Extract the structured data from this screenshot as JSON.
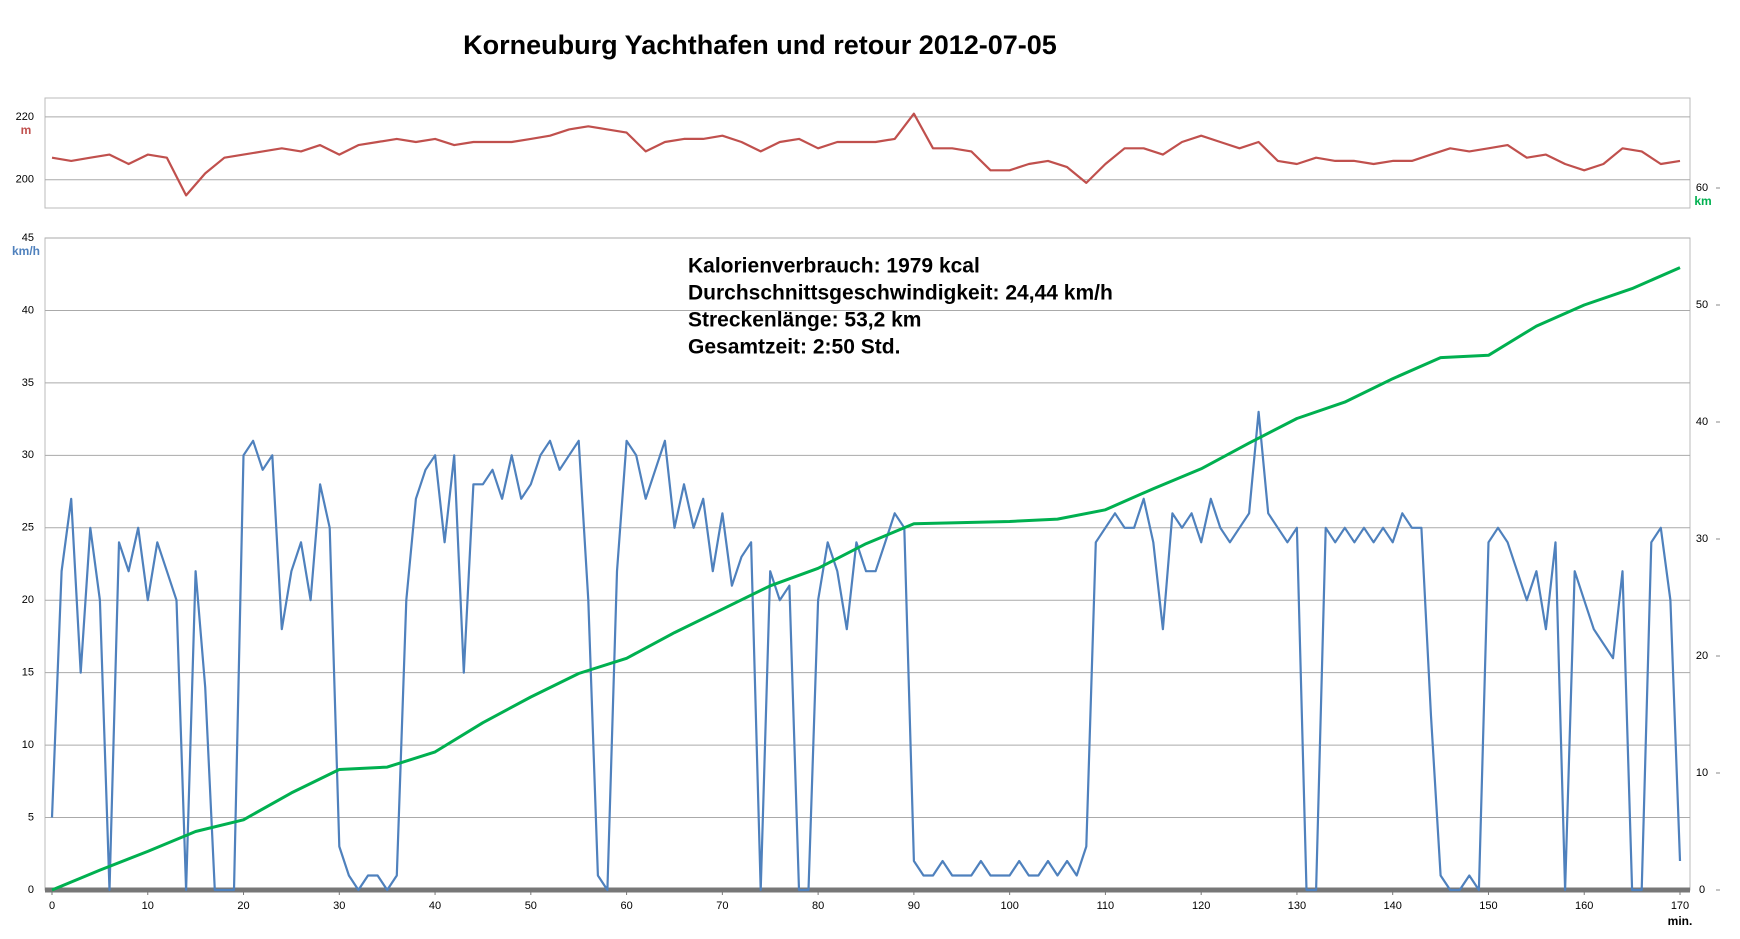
{
  "chart_data": [
    {
      "type": "line",
      "title": "Korneuburg Yachthafen und retour    2012-07-05",
      "ylabel": "m",
      "xlim": [
        0,
        170
      ],
      "ylim": [
        191,
        226
      ],
      "yticks": [
        200,
        220
      ],
      "grid": true,
      "series": [
        {
          "color": "#c0504d",
          "x": [
            0,
            2,
            4,
            6,
            8,
            10,
            12,
            14,
            16,
            18,
            20,
            22,
            24,
            26,
            28,
            30,
            32,
            34,
            36,
            38,
            40,
            42,
            44,
            46,
            48,
            50,
            52,
            54,
            56,
            58,
            60,
            62,
            64,
            66,
            68,
            70,
            72,
            74,
            76,
            78,
            80,
            82,
            84,
            86,
            88,
            90,
            92,
            94,
            96,
            98,
            100,
            102,
            104,
            106,
            108,
            110,
            112,
            114,
            116,
            118,
            120,
            122,
            124,
            126,
            128,
            130,
            132,
            134,
            136,
            138,
            140,
            142,
            144,
            146,
            148,
            150,
            152,
            154,
            156,
            158,
            160,
            162,
            164,
            166,
            168,
            170
          ],
          "values": [
            207,
            206,
            207,
            208,
            205,
            208,
            207,
            195,
            202,
            207,
            208,
            209,
            210,
            209,
            211,
            208,
            211,
            212,
            213,
            212,
            213,
            211,
            212,
            212,
            212,
            213,
            214,
            216,
            217,
            216,
            215,
            209,
            212,
            213,
            213,
            214,
            212,
            209,
            212,
            213,
            210,
            212,
            212,
            212,
            213,
            221,
            210,
            210,
            209,
            203,
            203,
            205,
            206,
            204,
            199,
            205,
            210,
            210,
            208,
            212,
            214,
            212,
            210,
            212,
            206,
            205,
            207,
            206,
            206,
            205,
            206,
            206,
            208,
            210,
            209,
            210,
            211,
            207,
            208,
            205,
            203,
            205,
            210,
            209,
            205,
            206
          ]
        }
      ]
    },
    {
      "type": "line",
      "ylabel": "km/h",
      "y2label": "km",
      "xlabel": "min.",
      "annotations": [
        "Kalorienverbrauch: 1979 kcal",
        "Durchschnittsgeschwindigkeit: 24,44 km/h",
        "Streckenlänge: 53,2 km",
        "Gesamtzeit: 2:50 Std."
      ],
      "xlim": [
        0,
        170
      ],
      "xticks": [
        0,
        10,
        20,
        30,
        40,
        50,
        60,
        70,
        80,
        90,
        100,
        110,
        120,
        130,
        140,
        150,
        160,
        170
      ],
      "ylim": [
        0,
        45
      ],
      "yticks": [
        0,
        5,
        10,
        15,
        20,
        25,
        30,
        35,
        40,
        45
      ],
      "y2lim": [
        0,
        60
      ],
      "y2ticks": [
        0,
        10,
        20,
        30,
        40,
        50,
        60
      ],
      "grid": true,
      "series": [
        {
          "color": "#4f81bd",
          "x": [
            0,
            1,
            2,
            3,
            4,
            5,
            6,
            7,
            8,
            9,
            10,
            11,
            12,
            13,
            14,
            15,
            16,
            17,
            18,
            19,
            20,
            21,
            22,
            23,
            24,
            25,
            26,
            27,
            28,
            29,
            30,
            31,
            32,
            33,
            34,
            35,
            36,
            37,
            38,
            39,
            40,
            41,
            42,
            43,
            44,
            45,
            46,
            47,
            48,
            49,
            50,
            51,
            52,
            53,
            54,
            55,
            56,
            57,
            58,
            59,
            60,
            61,
            62,
            63,
            64,
            65,
            66,
            67,
            68,
            69,
            70,
            71,
            72,
            73,
            74,
            75,
            76,
            77,
            78,
            79,
            80,
            81,
            82,
            83,
            84,
            85,
            86,
            87,
            88,
            89,
            90,
            91,
            92,
            93,
            94,
            95,
            96,
            97,
            98,
            99,
            100,
            101,
            102,
            103,
            104,
            105,
            106,
            107,
            108,
            109,
            110,
            111,
            112,
            113,
            114,
            115,
            116,
            117,
            118,
            119,
            120,
            121,
            122,
            123,
            124,
            125,
            126,
            127,
            128,
            129,
            130,
            131,
            132,
            133,
            134,
            135,
            136,
            137,
            138,
            139,
            140,
            141,
            142,
            143,
            144,
            145,
            146,
            147,
            148,
            149,
            150,
            151,
            152,
            153,
            154,
            155,
            156,
            157,
            158,
            159,
            160,
            161,
            162,
            163,
            164,
            165,
            166,
            167,
            168,
            169,
            170
          ],
          "values": [
            5,
            22,
            27,
            15,
            25,
            20,
            0,
            24,
            22,
            25,
            20,
            24,
            22,
            20,
            0,
            22,
            14,
            0,
            0,
            0,
            30,
            31,
            29,
            30,
            18,
            22,
            24,
            20,
            28,
            25,
            3,
            1,
            0,
            1,
            1,
            0,
            1,
            20,
            27,
            29,
            30,
            24,
            30,
            15,
            28,
            28,
            29,
            27,
            30,
            27,
            28,
            30,
            31,
            29,
            30,
            31,
            20,
            1,
            0,
            22,
            31,
            30,
            27,
            29,
            31,
            25,
            28,
            25,
            27,
            22,
            26,
            21,
            23,
            24,
            0,
            22,
            20,
            21,
            0,
            0,
            20,
            24,
            22,
            18,
            24,
            22,
            22,
            24,
            26,
            25,
            2,
            1,
            1,
            2,
            1,
            1,
            1,
            2,
            1,
            1,
            1,
            2,
            1,
            1,
            2,
            1,
            2,
            1,
            3,
            24,
            25,
            26,
            25,
            25,
            27,
            24,
            18,
            26,
            25,
            26,
            24,
            27,
            25,
            24,
            25,
            26,
            33,
            26,
            25,
            24,
            25,
            0,
            0,
            25,
            24,
            25,
            24,
            25,
            24,
            25,
            24,
            26,
            25,
            25,
            12,
            1,
            0,
            0,
            1,
            0,
            24,
            25,
            24,
            22,
            20,
            22,
            18,
            24,
            0,
            22,
            20,
            18,
            17,
            16,
            22,
            0,
            0,
            24,
            25,
            20,
            2
          ]
        },
        {
          "color": "#00b050",
          "axis": "y2",
          "x": [
            0,
            5,
            10,
            15,
            20,
            25,
            30,
            35,
            40,
            45,
            50,
            55,
            60,
            65,
            70,
            75,
            80,
            85,
            90,
            95,
            100,
            105,
            110,
            115,
            120,
            125,
            130,
            135,
            140,
            145,
            150,
            155,
            160,
            165,
            170
          ],
          "values": [
            0,
            1.7,
            3.3,
            5,
            6,
            8.3,
            10.3,
            10.5,
            11.8,
            14.3,
            16.5,
            18.5,
            19.8,
            22,
            24,
            26,
            27.5,
            29.6,
            31.3,
            31.4,
            31.5,
            31.7,
            32.5,
            34.3,
            36,
            38.2,
            40.3,
            41.7,
            43.7,
            45.5,
            45.7,
            48.2,
            50,
            51.4,
            53.2
          ]
        }
      ]
    }
  ]
}
